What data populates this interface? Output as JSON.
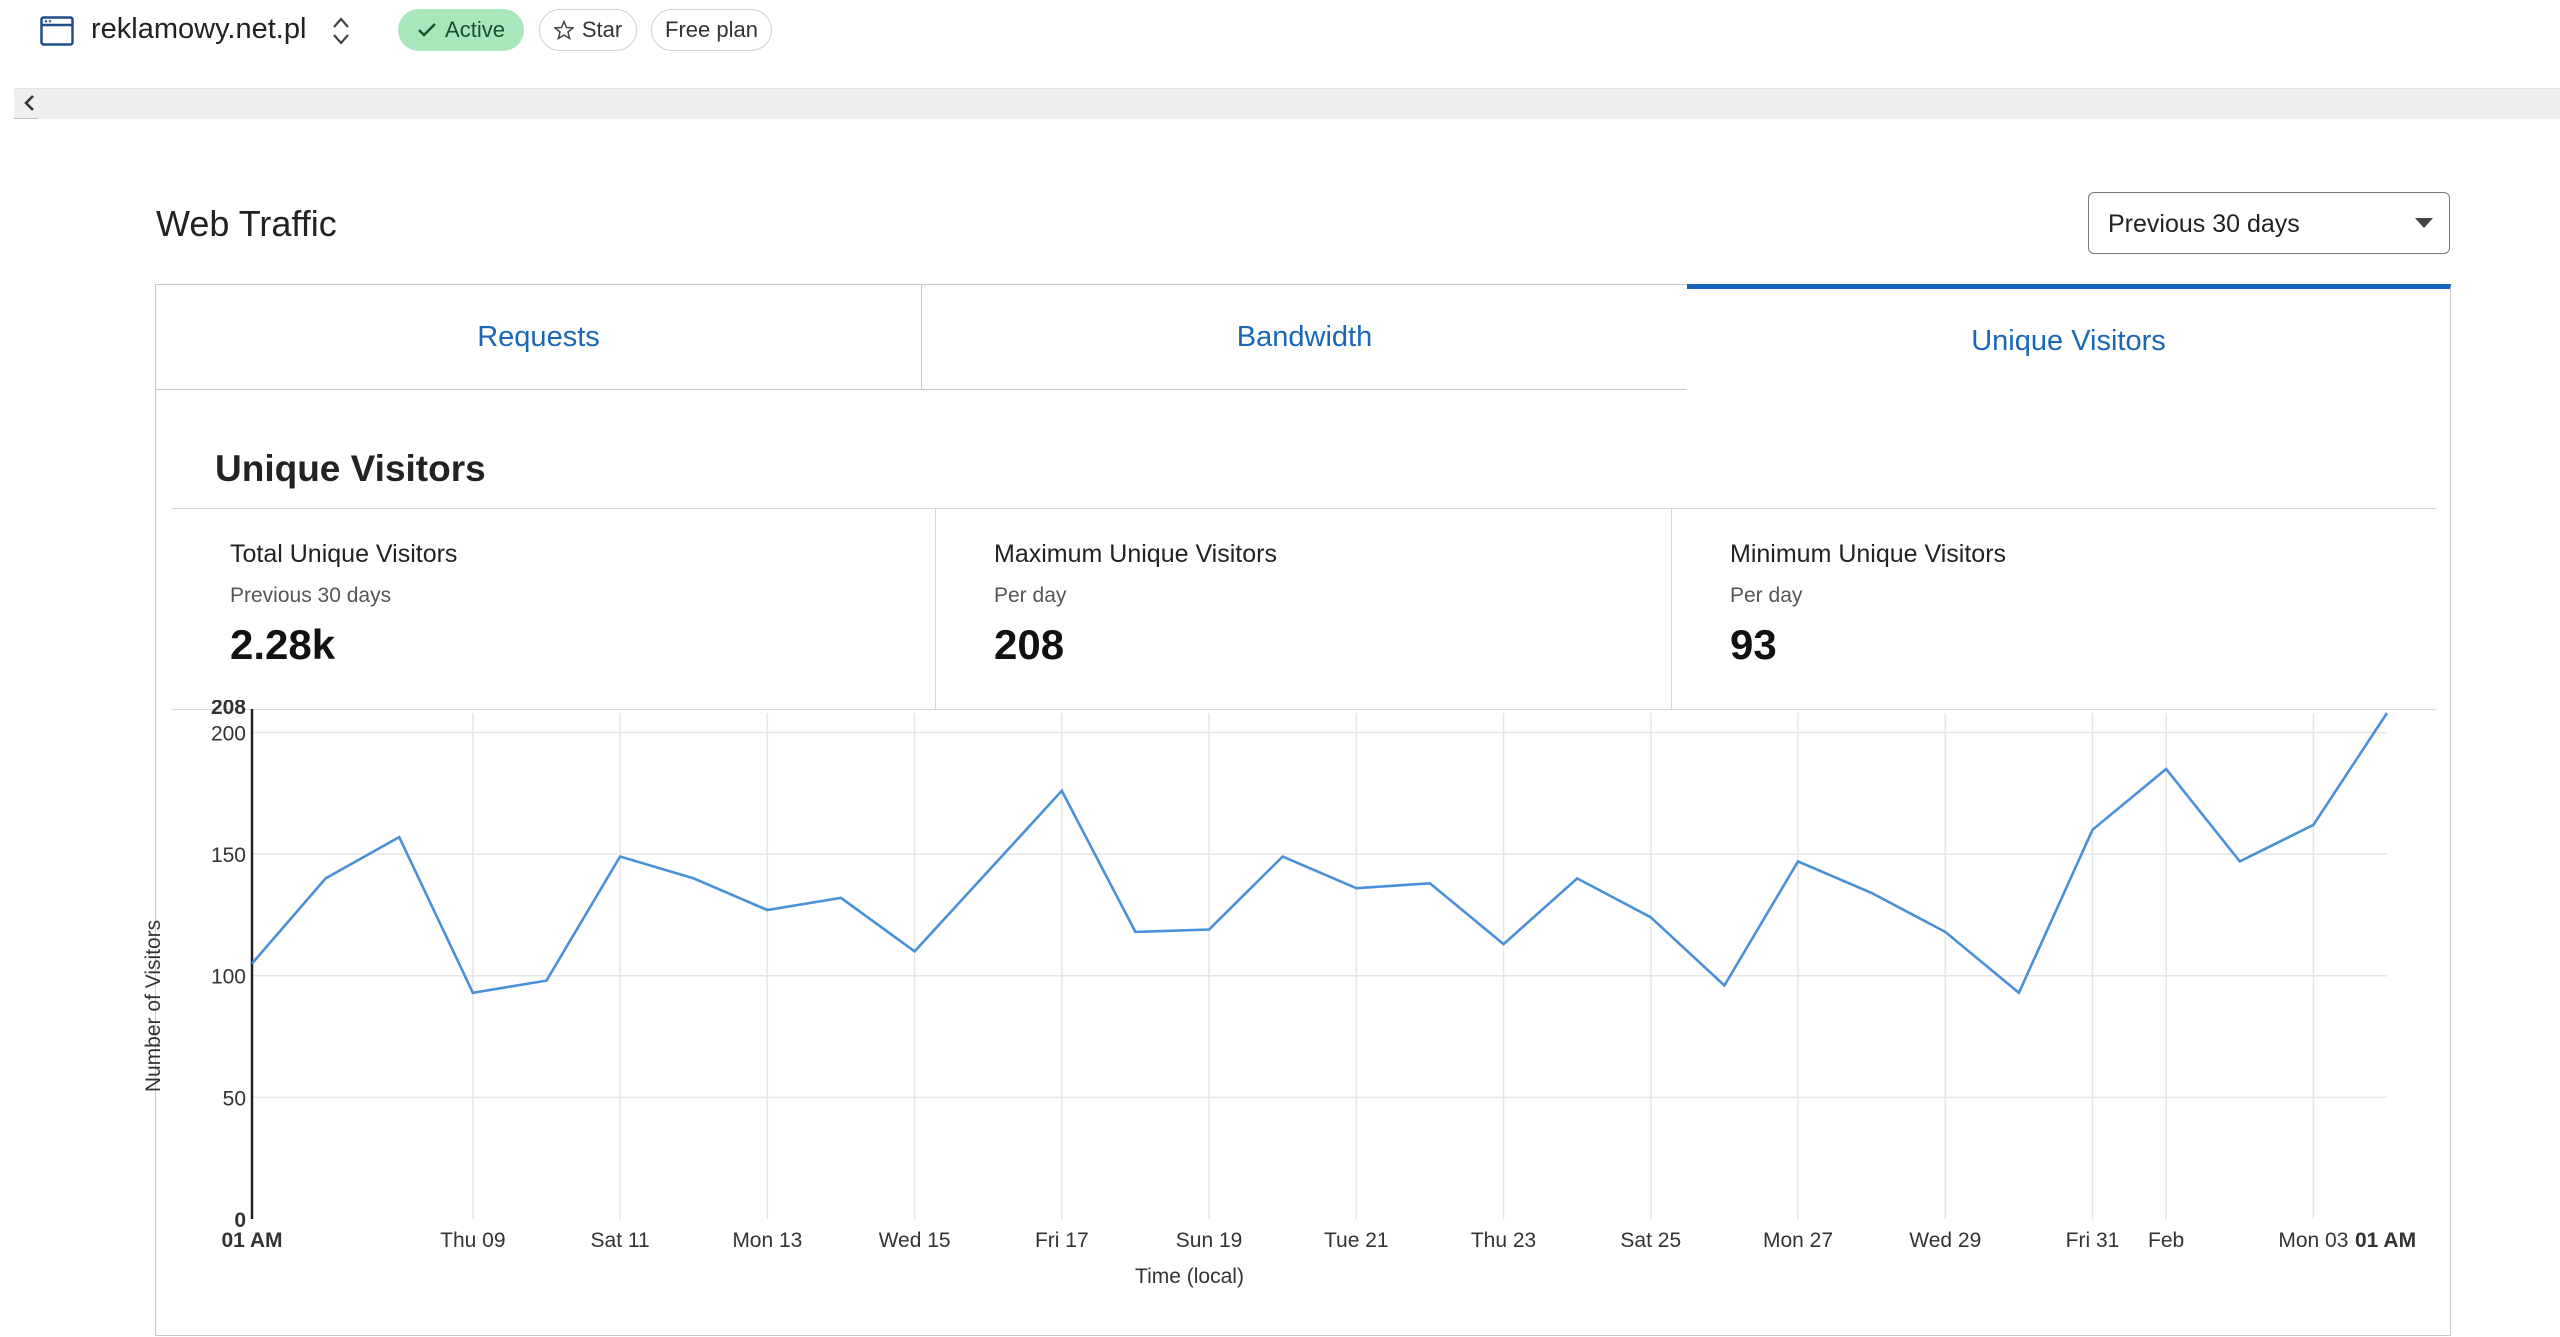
{
  "site": {
    "name": "reklamowy.net.pl",
    "status": "Active",
    "star_label": "Star",
    "plan": "Free plan"
  },
  "page": {
    "title": "Web Traffic",
    "period": "Previous 30 days"
  },
  "tabs": [
    {
      "label": "Requests"
    },
    {
      "label": "Bandwidth"
    },
    {
      "label": "Unique Visitors",
      "active": true
    }
  ],
  "section": {
    "title": "Unique Visitors"
  },
  "stats": [
    {
      "label": "Total Unique Visitors",
      "sub": "Previous 30 days",
      "value": "2.28k"
    },
    {
      "label": "Maximum Unique Visitors",
      "sub": "Per day",
      "value": "208"
    },
    {
      "label": "Minimum Unique Visitors",
      "sub": "Per day",
      "value": "93"
    }
  ],
  "colors": {
    "accent": "#1565c0",
    "line": "#4a90d9",
    "active_badge": "#a8e6bc"
  },
  "icons": {
    "site": "browser-window-icon",
    "switcher": "chevron-up-down-icon",
    "check": "check-icon",
    "star": "star-icon",
    "back": "chevron-left-icon",
    "dropdown": "caret-down-icon"
  },
  "chart_data": {
    "type": "line",
    "xlabel": "Time (local)",
    "ylabel": "Number of Visitors",
    "ylim": [
      0,
      208
    ],
    "yticks": [
      0,
      50,
      100,
      150,
      200,
      208
    ],
    "xticks": [
      "01 AM",
      "Thu 09",
      "Sat 11",
      "Mon 13",
      "Wed 15",
      "Fri 17",
      "Sun 19",
      "Tue 21",
      "Thu 23",
      "Sat 25",
      "Mon 27",
      "Wed 29",
      "Fri 31",
      "Feb",
      "Mon 03",
      "01 AM"
    ],
    "xtick_days": [
      0,
      3,
      5,
      7,
      9,
      11,
      13,
      15,
      17,
      19,
      21,
      23,
      25,
      26,
      28,
      29
    ],
    "bold_ticks": [
      "01 AM"
    ],
    "grid": true,
    "series": [
      {
        "values": [
          105,
          140,
          157,
          93,
          98,
          149,
          140,
          127,
          132,
          110,
          143,
          176,
          118,
          119,
          149,
          136,
          138,
          113,
          140,
          124,
          96,
          147,
          134,
          118,
          93,
          160,
          185,
          147,
          162,
          208
        ]
      }
    ]
  }
}
